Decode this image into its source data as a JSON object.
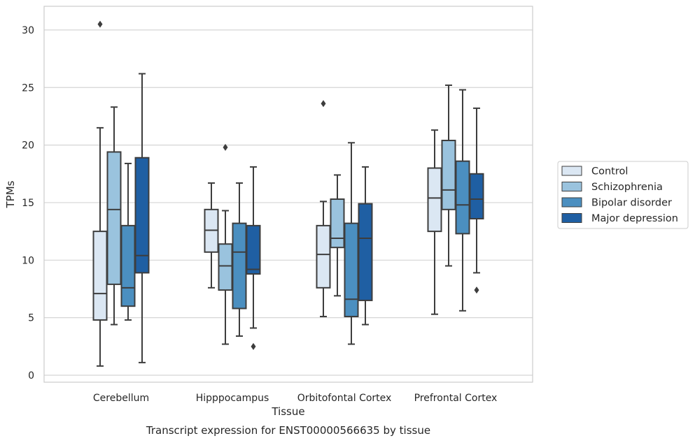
{
  "chart_data": {
    "type": "box",
    "title": "",
    "caption": "Transcript expression for ENST00000566635 by tissue",
    "xlabel": "Tissue",
    "ylabel": "TPMs",
    "ylim": [
      -0.6,
      32.1
    ],
    "yticks": [
      0,
      5,
      10,
      15,
      20,
      25,
      30
    ],
    "grid": "horizontal",
    "legend_position": "right",
    "categories": [
      "Cerebellum",
      "Hipppocampus",
      "Orbitofontal Cortex",
      "Prefrontal Cortex"
    ],
    "series": [
      {
        "name": "Control",
        "color": "#dbe7f3",
        "boxes": [
          {
            "whislo": 0.8,
            "q1": 4.8,
            "med": 7.1,
            "q3": 12.5,
            "whishi": 21.5,
            "fliers": [
              30.5
            ]
          },
          {
            "whislo": 7.6,
            "q1": 10.7,
            "med": 12.6,
            "q3": 14.4,
            "whishi": 16.7,
            "fliers": []
          },
          {
            "whislo": 5.1,
            "q1": 7.6,
            "med": 10.5,
            "q3": 13.0,
            "whishi": 15.1,
            "fliers": [
              23.6
            ]
          },
          {
            "whislo": 5.3,
            "q1": 12.5,
            "med": 15.4,
            "q3": 18.0,
            "whishi": 21.3,
            "fliers": []
          }
        ]
      },
      {
        "name": "Schizophrenia",
        "color": "#9ac3de",
        "boxes": [
          {
            "whislo": 4.4,
            "q1": 7.9,
            "med": 14.4,
            "q3": 19.4,
            "whishi": 23.3,
            "fliers": []
          },
          {
            "whislo": 2.7,
            "q1": 7.4,
            "med": 9.5,
            "q3": 11.4,
            "whishi": 14.3,
            "fliers": [
              19.8
            ]
          },
          {
            "whislo": 6.9,
            "q1": 11.1,
            "med": 11.9,
            "q3": 15.3,
            "whishi": 17.4,
            "fliers": []
          },
          {
            "whislo": 9.5,
            "q1": 14.4,
            "med": 16.1,
            "q3": 20.4,
            "whishi": 25.2,
            "fliers": []
          }
        ]
      },
      {
        "name": "Bipolar disorder",
        "color": "#4b8fc0",
        "boxes": [
          {
            "whislo": 4.8,
            "q1": 6.0,
            "med": 7.6,
            "q3": 13.0,
            "whishi": 18.4,
            "fliers": []
          },
          {
            "whislo": 3.4,
            "q1": 5.8,
            "med": 10.7,
            "q3": 13.2,
            "whishi": 16.7,
            "fliers": []
          },
          {
            "whislo": 2.7,
            "q1": 5.1,
            "med": 6.6,
            "q3": 13.2,
            "whishi": 20.2,
            "fliers": []
          },
          {
            "whislo": 5.6,
            "q1": 12.3,
            "med": 14.8,
            "q3": 18.6,
            "whishi": 24.8,
            "fliers": []
          }
        ]
      },
      {
        "name": "Major depression",
        "color": "#1f5fa3",
        "boxes": [
          {
            "whislo": 1.1,
            "q1": 8.9,
            "med": 10.4,
            "q3": 18.9,
            "whishi": 26.2,
            "fliers": []
          },
          {
            "whislo": 4.1,
            "q1": 8.8,
            "med": 9.2,
            "q3": 13.0,
            "whishi": 18.1,
            "fliers": [
              2.5
            ]
          },
          {
            "whislo": 4.4,
            "q1": 6.5,
            "med": 11.9,
            "q3": 14.9,
            "whishi": 18.1,
            "fliers": []
          },
          {
            "whislo": 8.9,
            "q1": 13.6,
            "med": 15.3,
            "q3": 17.5,
            "whishi": 23.2,
            "fliers": [
              7.4
            ]
          }
        ]
      }
    ]
  }
}
